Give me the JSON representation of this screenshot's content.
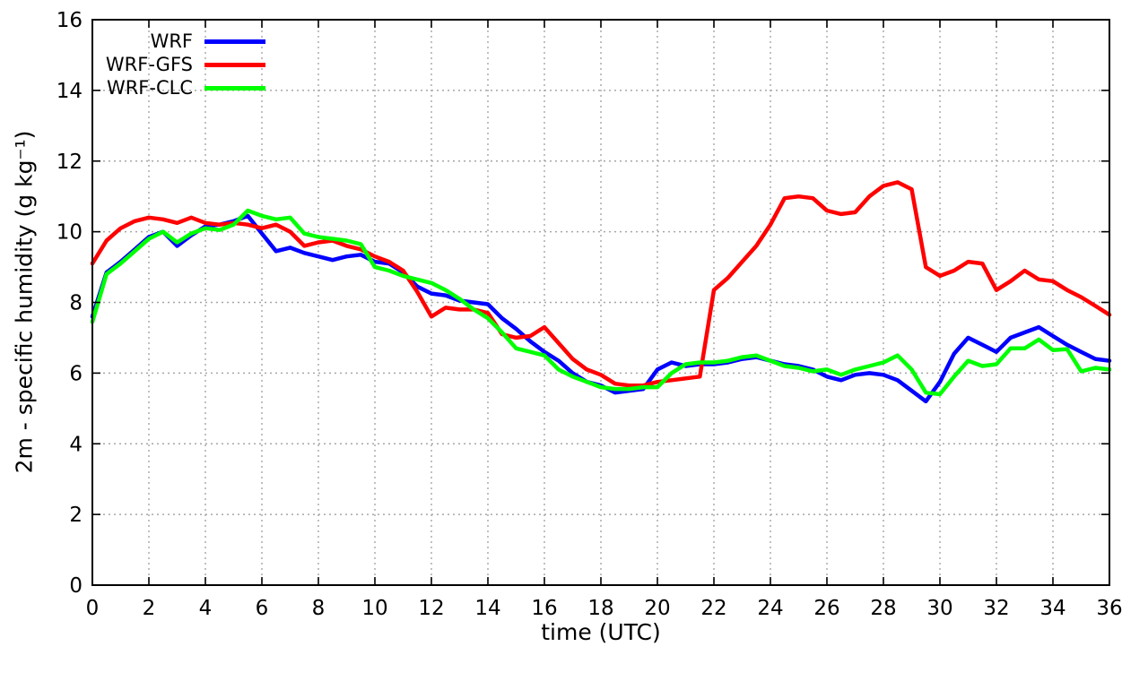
{
  "chart_data": {
    "type": "line",
    "xlabel": "time (UTC)",
    "ylabel": "2m - specific humidity (g kg⁻¹)",
    "xlim": [
      0,
      36
    ],
    "ylim": [
      0,
      16
    ],
    "xticks": [
      0,
      2,
      4,
      6,
      8,
      10,
      12,
      14,
      16,
      18,
      20,
      22,
      24,
      26,
      28,
      30,
      32,
      34,
      36
    ],
    "yticks": [
      0,
      2,
      4,
      6,
      8,
      10,
      12,
      14,
      16
    ],
    "grid": "dashed",
    "grid_color": "#a6a6a6",
    "legend_position": "top-left-inside",
    "x": [
      0,
      0.5,
      1,
      1.5,
      2,
      2.5,
      3,
      3.5,
      4,
      4.5,
      5,
      5.5,
      6,
      6.5,
      7,
      7.5,
      8,
      8.5,
      9,
      9.5,
      10,
      10.5,
      11,
      11.5,
      12,
      12.5,
      13,
      13.5,
      14,
      14.5,
      15,
      15.5,
      16,
      16.5,
      17,
      17.5,
      18,
      18.5,
      19,
      19.5,
      20,
      20.5,
      21,
      21.5,
      22,
      22.5,
      23,
      23.5,
      24,
      24.5,
      25,
      25.5,
      26,
      26.5,
      27,
      27.5,
      28,
      28.5,
      29,
      29.5,
      30,
      30.5,
      31,
      31.5,
      32,
      32.5,
      33,
      33.5,
      34,
      34.5,
      35,
      35.5,
      36
    ],
    "series": [
      {
        "name": "WRF",
        "color": "#0000ff",
        "values": [
          7.6,
          8.85,
          9.15,
          9.5,
          9.85,
          10.0,
          9.6,
          9.9,
          10.15,
          10.2,
          10.3,
          10.45,
          9.95,
          9.45,
          9.55,
          9.4,
          9.3,
          9.2,
          9.3,
          9.35,
          9.15,
          9.1,
          8.85,
          8.45,
          8.25,
          8.2,
          8.05,
          8.0,
          7.95,
          7.55,
          7.25,
          6.9,
          6.6,
          6.35,
          6.0,
          5.75,
          5.65,
          5.45,
          5.5,
          5.55,
          6.1,
          6.3,
          6.2,
          6.25,
          6.25,
          6.3,
          6.4,
          6.45,
          6.35,
          6.25,
          6.2,
          6.1,
          5.9,
          5.8,
          5.95,
          6.0,
          5.95,
          5.8,
          5.5,
          5.2,
          5.75,
          6.55,
          7.0,
          6.8,
          6.6,
          7.0,
          7.15,
          7.3,
          7.05,
          6.8,
          6.6,
          6.4,
          6.35
        ]
      },
      {
        "name": "WRF-GFS",
        "color": "#ff0000",
        "values": [
          9.1,
          9.75,
          10.1,
          10.3,
          10.4,
          10.35,
          10.25,
          10.4,
          10.25,
          10.2,
          10.25,
          10.2,
          10.1,
          10.2,
          10.0,
          9.6,
          9.7,
          9.75,
          9.6,
          9.5,
          9.3,
          9.15,
          8.9,
          8.3,
          7.6,
          7.85,
          7.8,
          7.8,
          7.7,
          7.1,
          7.0,
          7.05,
          7.3,
          6.85,
          6.4,
          6.1,
          5.95,
          5.7,
          5.65,
          5.65,
          5.75,
          5.8,
          5.85,
          5.9,
          8.35,
          8.7,
          9.15,
          9.6,
          10.2,
          10.95,
          11.0,
          10.95,
          10.6,
          10.5,
          10.55,
          11.0,
          11.3,
          11.4,
          11.2,
          9.0,
          8.75,
          8.9,
          9.15,
          9.1,
          8.35,
          8.6,
          8.9,
          8.65,
          8.6,
          8.35,
          8.15,
          7.9,
          7.65
        ]
      },
      {
        "name": "WRF-CLC",
        "color": "#00ff00",
        "values": [
          7.45,
          8.8,
          9.1,
          9.45,
          9.8,
          10.0,
          9.7,
          9.95,
          10.1,
          10.05,
          10.2,
          10.6,
          10.45,
          10.35,
          10.4,
          9.95,
          9.85,
          9.8,
          9.75,
          9.65,
          9.0,
          8.9,
          8.75,
          8.65,
          8.55,
          8.35,
          8.1,
          7.8,
          7.55,
          7.15,
          6.7,
          6.6,
          6.5,
          6.1,
          5.9,
          5.75,
          5.6,
          5.55,
          5.55,
          5.6,
          5.6,
          6.0,
          6.25,
          6.3,
          6.3,
          6.35,
          6.45,
          6.5,
          6.35,
          6.2,
          6.15,
          6.05,
          6.1,
          5.95,
          6.1,
          6.2,
          6.3,
          6.5,
          6.1,
          5.45,
          5.4,
          5.9,
          6.35,
          6.2,
          6.25,
          6.7,
          6.7,
          6.95,
          6.65,
          6.68,
          6.05,
          6.15,
          6.1
        ]
      }
    ]
  }
}
